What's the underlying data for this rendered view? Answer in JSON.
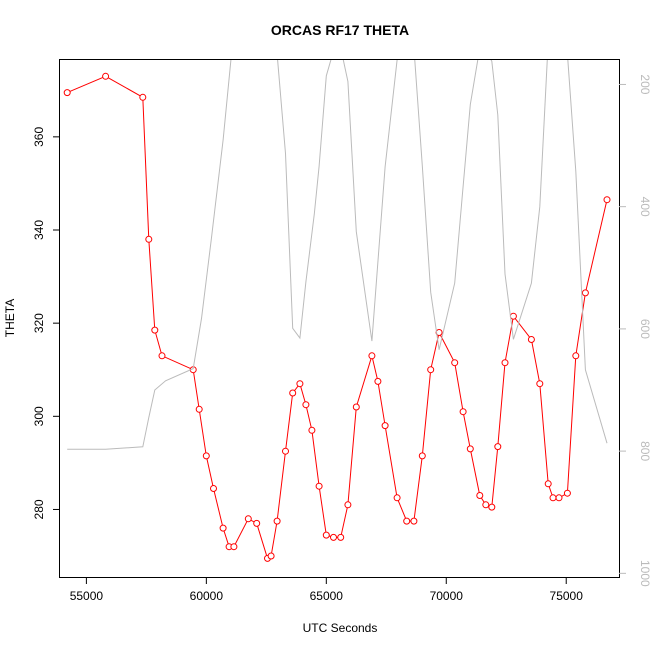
{
  "chart_data": {
    "type": "line",
    "title": "ORCAS RF17 THETA",
    "xlabel": "UTC Seconds",
    "ylabel": "THETA",
    "xlim": [
      53900,
      77200
    ],
    "ylim": [
      265.5,
      376.5
    ],
    "right_ylim": [
      1006,
      160
    ],
    "x_ticks": [
      55000,
      60000,
      65000,
      70000,
      75000
    ],
    "y_ticks": [
      280,
      300,
      320,
      340,
      360
    ],
    "right_y_ticks": [
      200,
      400,
      600,
      800,
      1000
    ],
    "x_tick_labels": [
      "55000",
      "60000",
      "65000",
      "70000",
      "75000"
    ],
    "y_tick_labels": [
      "280",
      "300",
      "320",
      "340",
      "360"
    ],
    "right_y_tick_labels": [
      "200",
      "400",
      "600",
      "800",
      "1000"
    ],
    "grid": false,
    "series": [
      {
        "axis": "left",
        "color": "#ff0000",
        "marker": "open-circle",
        "x": [
          54200,
          55800,
          57350,
          57600,
          57850,
          58150,
          59450,
          59700,
          60000,
          60300,
          60700,
          60950,
          61150,
          61750,
          62100,
          62550,
          62700,
          62950,
          63300,
          63600,
          63900,
          64150,
          64400,
          64700,
          65000,
          65300,
          65600,
          65900,
          66250,
          66900,
          67150,
          67450,
          67950,
          68350,
          68650,
          69000,
          69350,
          69700,
          70350,
          70700,
          71000,
          71400,
          71650,
          71900,
          72150,
          72450,
          72800,
          73550,
          73900,
          74250,
          74450,
          74700,
          75050,
          75400,
          75800,
          76700
        ],
        "y": [
          369.5,
          373,
          368.5,
          338,
          318.5,
          313,
          310,
          301.5,
          291.5,
          284.5,
          276,
          272,
          272,
          278,
          277,
          269.5,
          270,
          277.5,
          292.5,
          305,
          307,
          302.5,
          297,
          285,
          274.5,
          274,
          274,
          281,
          302,
          313,
          307.5,
          298,
          282.5,
          277.5,
          277.5,
          291.5,
          310,
          318,
          311.5,
          301,
          293,
          283,
          281,
          280.5,
          293.5,
          311.5,
          321.5,
          316.5,
          307,
          285.5,
          282.5,
          282.5,
          283.5,
          313,
          326.5,
          346.5
        ]
      },
      {
        "axis": "right",
        "color": "#bbbbbb",
        "marker": "none",
        "x": [
          54200,
          55800,
          57350,
          57600,
          57850,
          58300,
          59450,
          59800,
          60200,
          60700,
          61050,
          61800,
          62150,
          62500,
          62950,
          63300,
          63600,
          63900,
          64150,
          64500,
          64700,
          65000,
          65300,
          65600,
          65900,
          66250,
          66900,
          67450,
          67950,
          68350,
          68650,
          69000,
          69350,
          69700,
          70350,
          70700,
          71000,
          71400,
          71650,
          71900,
          72150,
          72450,
          72800,
          73550,
          73900,
          74250,
          74450,
          75050,
          75400,
          75800,
          76700
        ],
        "y": [
          797,
          797,
          793,
          745,
          700,
          685,
          665,
          583,
          456,
          291,
          150,
          141,
          135,
          141,
          150,
          313,
          599,
          615,
          523,
          412,
          334,
          186,
          145,
          140,
          195,
          441,
          620,
          335,
          160,
          143,
          140,
          333,
          540,
          634,
          525,
          367,
          233,
          140,
          145,
          162,
          250,
          510,
          617,
          525,
          400,
          130,
          145,
          150,
          342,
          667,
          787
        ]
      }
    ]
  }
}
